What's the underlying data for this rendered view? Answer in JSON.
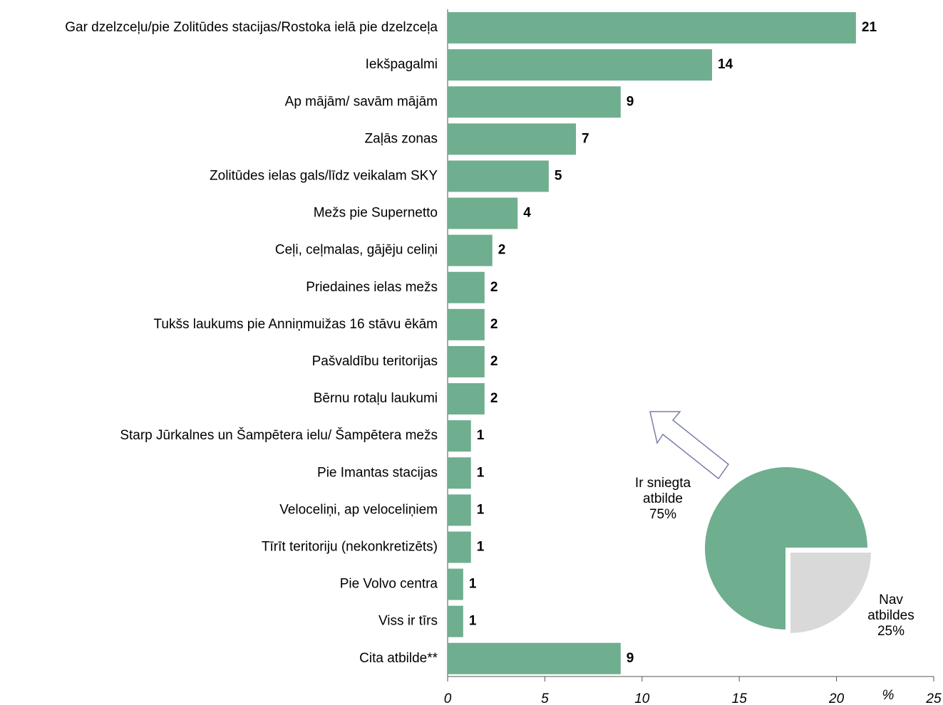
{
  "chart_data": [
    {
      "type": "bar",
      "orientation": "horizontal",
      "categories": [
        "Gar dzelzceļu/pie Zolitūdes stacijas/Rostoka ielā pie dzelzceļa",
        "Iekšpagalmi",
        "Ap mājām/ savām mājām",
        "Zaļās zonas",
        "Zolitūdes ielas gals/līdz veikalam SKY",
        "Mežs pie Supernetto",
        "Ceļi, ceļmalas, gājēju celiņi",
        "Priedaines ielas mežs",
        "Tukšs laukums pie Anniņmuižas 16 stāvu ēkām",
        "Pašvaldību teritorijas",
        "Bērnu rotaļu laukumi",
        "Starp Jūrkalnes un Šampētera ielu/ Šampētera mežs",
        "Pie Imantas stacijas",
        "Veloceliņi, ap veloceliņiem",
        "Tīrīt teritoriju (nekonkretizēts)",
        "Pie Volvo centra",
        "Viss ir tīrs",
        "Cita atbilde**"
      ],
      "values": [
        21.0,
        13.6,
        8.9,
        6.6,
        5.2,
        3.6,
        2.3,
        1.9,
        1.9,
        1.9,
        1.9,
        1.2,
        1.2,
        1.2,
        1.2,
        0.8,
        0.8,
        8.9
      ],
      "value_labels": [
        "21",
        "14",
        "9",
        "7",
        "5",
        "4",
        "2",
        "2",
        "2",
        "2",
        "2",
        "1",
        "1",
        "1",
        "1",
        "1",
        "1",
        "9"
      ],
      "color": "#6fae8f",
      "xlabel": "%",
      "xlim": [
        0,
        25
      ],
      "xticks": [
        0,
        5,
        10,
        15,
        20,
        25
      ]
    },
    {
      "type": "pie",
      "categories": [
        "Ir sniegta atbilde",
        "Nav atbildes"
      ],
      "values": [
        75,
        25
      ],
      "value_labels": [
        "75%",
        "25%"
      ],
      "colors": [
        "#6fae8f",
        "#d9d9d9"
      ]
    }
  ]
}
